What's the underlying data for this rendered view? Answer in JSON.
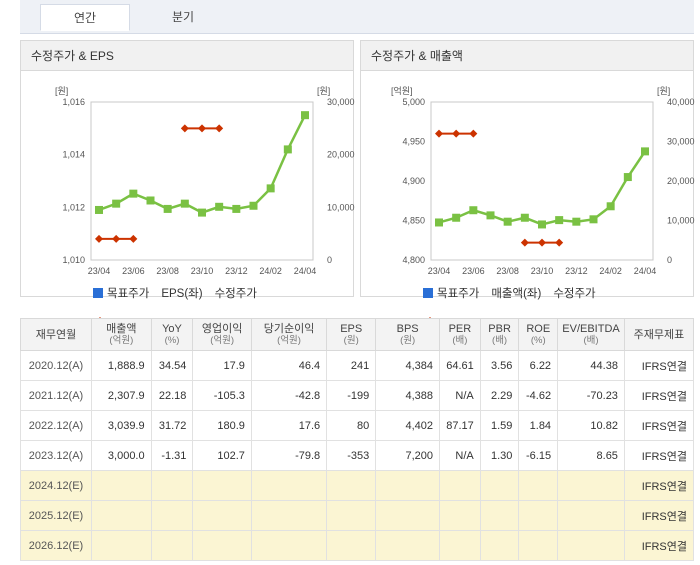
{
  "tabs": [
    "연간",
    "분기"
  ],
  "charts": [
    {
      "title": "수정주가 & EPS",
      "left_unit": "[원]",
      "right_unit": "[원]",
      "left_ticks": [
        "1,016",
        "1,014",
        "1,012",
        "1,010"
      ],
      "right_ticks": [
        "30,000",
        "20,000",
        "10,000",
        "0"
      ],
      "x_labels": [
        "23/04",
        "23/06",
        "23/08",
        "23/10",
        "23/12",
        "24/02",
        "24/04"
      ],
      "legend": [
        "목표주가",
        "EPS(좌)",
        "수정주가"
      ]
    },
    {
      "title": "수정주가 & 매출액",
      "left_unit": "[억원]",
      "right_unit": "[원]",
      "left_ticks": [
        "5,000",
        "4,950",
        "4,900",
        "4,850",
        "4,800"
      ],
      "right_ticks": [
        "40,000",
        "30,000",
        "20,000",
        "10,000",
        "0"
      ],
      "x_labels": [
        "23/04",
        "23/06",
        "23/08",
        "23/10",
        "23/12",
        "24/02",
        "24/04"
      ],
      "legend": [
        "목표주가",
        "매출액(좌)",
        "수정주가"
      ]
    }
  ],
  "chart_data": [
    {
      "type": "line",
      "title": "수정주가 & EPS",
      "x": [
        "23/04",
        "23/05",
        "23/06",
        "23/07",
        "23/08",
        "23/09",
        "23/10",
        "23/11",
        "23/12",
        "24/01",
        "24/02",
        "24/03",
        "24/04"
      ],
      "left_axis": {
        "unit": "원",
        "ylim": [
          1010,
          1016
        ]
      },
      "right_axis": {
        "unit": "원",
        "ylim": [
          0,
          30000
        ]
      },
      "series": [
        {
          "name": "EPS(좌)",
          "axis": "left",
          "color": "#cc3300",
          "values": [
            1010.8,
            1010.8,
            1010.8,
            null,
            null,
            1015.0,
            1015.0,
            1015.0,
            null,
            null,
            null,
            null,
            null
          ]
        },
        {
          "name": "수정주가",
          "axis": "right",
          "color": "#7ac143",
          "values": [
            9500,
            10700,
            12600,
            11300,
            9700,
            10700,
            9000,
            10100,
            9700,
            10300,
            13600,
            21000,
            27500
          ]
        }
      ]
    },
    {
      "type": "line",
      "title": "수정주가 & 매출액",
      "x": [
        "23/04",
        "23/05",
        "23/06",
        "23/07",
        "23/08",
        "23/09",
        "23/10",
        "23/11",
        "23/12",
        "24/01",
        "24/02",
        "24/03",
        "24/04"
      ],
      "left_axis": {
        "unit": "억원",
        "ylim": [
          4800,
          5000
        ]
      },
      "right_axis": {
        "unit": "원",
        "ylim": [
          0,
          40000
        ]
      },
      "series": [
        {
          "name": "매출액(좌)",
          "axis": "left",
          "color": "#cc3300",
          "values": [
            4960,
            4960,
            4960,
            null,
            null,
            4822,
            4822,
            4822,
            null,
            null,
            null,
            null,
            null
          ]
        },
        {
          "name": "수정주가",
          "axis": "right",
          "color": "#7ac143",
          "values": [
            9500,
            10700,
            12600,
            11300,
            9700,
            10700,
            9000,
            10100,
            9700,
            10300,
            13600,
            21000,
            27500
          ]
        }
      ]
    }
  ],
  "table": {
    "headers": [
      {
        "label": "재무연월",
        "sub": ""
      },
      {
        "label": "매출액",
        "sub": "(억원)"
      },
      {
        "label": "YoY",
        "sub": "(%)"
      },
      {
        "label": "영업이익",
        "sub": "(억원)"
      },
      {
        "label": "당기순이익",
        "sub": "(억원)"
      },
      {
        "label": "EPS",
        "sub": "(원)"
      },
      {
        "label": "BPS",
        "sub": "(원)"
      },
      {
        "label": "PER",
        "sub": "(배)"
      },
      {
        "label": "PBR",
        "sub": "(배)"
      },
      {
        "label": "ROE",
        "sub": "(%)"
      },
      {
        "label": "EV/EBITDA",
        "sub": "(배)"
      },
      {
        "label": "주재무제표",
        "sub": ""
      }
    ],
    "rows": [
      {
        "estimate": false,
        "cells": [
          "2020.12(A)",
          "1,888.9",
          "34.54",
          "17.9",
          "46.4",
          "241",
          "4,384",
          "64.61",
          "3.56",
          "6.22",
          "44.38",
          "IFRS연결"
        ]
      },
      {
        "estimate": false,
        "cells": [
          "2021.12(A)",
          "2,307.9",
          "22.18",
          "-105.3",
          "-42.8",
          "-199",
          "4,388",
          "N/A",
          "2.29",
          "-4.62",
          "-70.23",
          "IFRS연결"
        ]
      },
      {
        "estimate": false,
        "cells": [
          "2022.12(A)",
          "3,039.9",
          "31.72",
          "180.9",
          "17.6",
          "80",
          "4,402",
          "87.17",
          "1.59",
          "1.84",
          "10.82",
          "IFRS연결"
        ]
      },
      {
        "estimate": false,
        "cells": [
          "2023.12(A)",
          "3,000.0",
          "-1.31",
          "102.7",
          "-79.8",
          "-353",
          "7,200",
          "N/A",
          "1.30",
          "-6.15",
          "8.65",
          "IFRS연결"
        ]
      },
      {
        "estimate": true,
        "cells": [
          "2024.12(E)",
          "",
          "",
          "",
          "",
          "",
          "",
          "",
          "",
          "",
          "",
          "IFRS연결"
        ]
      },
      {
        "estimate": true,
        "cells": [
          "2025.12(E)",
          "",
          "",
          "",
          "",
          "",
          "",
          "",
          "",
          "",
          "",
          "IFRS연결"
        ]
      },
      {
        "estimate": true,
        "cells": [
          "2026.12(E)",
          "",
          "",
          "",
          "",
          "",
          "",
          "",
          "",
          "",
          "",
          "IFRS연결"
        ]
      }
    ]
  },
  "colors": {
    "target_price": "#2a6fd6",
    "left_series": "#cc3300",
    "price": "#7ac143"
  }
}
